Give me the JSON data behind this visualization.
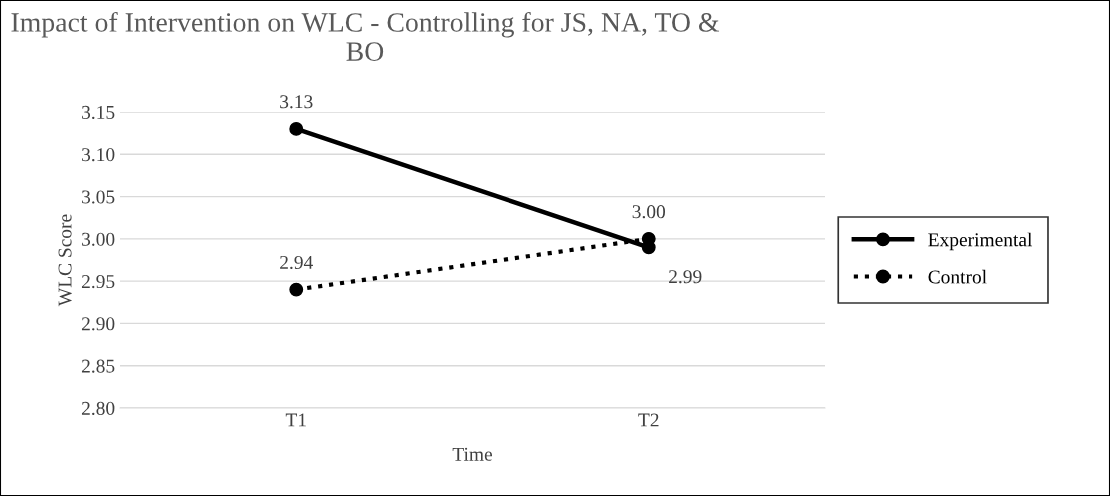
{
  "chart_data": {
    "type": "line",
    "title": "Impact of Intervention on WLC - Controlling for JS, NA, TO & BO",
    "xlabel": "Time",
    "ylabel": "WLC Score",
    "categories": [
      "T1",
      "T2"
    ],
    "series": [
      {
        "name": "Experimental",
        "color": "#000000",
        "values": [
          3.13,
          2.99
        ],
        "value_labels": [
          "3.13",
          "2.99"
        ],
        "line_style": "solid"
      },
      {
        "name": "Control",
        "color": "#000000",
        "values": [
          2.94,
          3.0
        ],
        "value_labels": [
          "2.94",
          "3.00"
        ],
        "line_style": "dotted"
      }
    ],
    "ylim": [
      2.8,
      3.15
    ],
    "yticks": [
      {
        "value": 2.8,
        "label": "2.80"
      },
      {
        "value": 2.85,
        "label": "2.85"
      },
      {
        "value": 2.9,
        "label": "2.90"
      },
      {
        "value": 2.95,
        "label": "2.95"
      },
      {
        "value": 3.0,
        "label": "3.00"
      },
      {
        "value": 3.05,
        "label": "3.05"
      },
      {
        "value": 3.1,
        "label": "3.10"
      },
      {
        "value": 3.15,
        "label": "3.15"
      }
    ],
    "grid": "y",
    "legend": "right",
    "marker": "circle"
  }
}
